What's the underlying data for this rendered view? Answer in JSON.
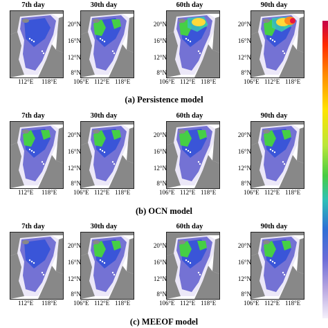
{
  "rows": [
    {
      "caption": "(a) Persistence model",
      "panels": [
        {
          "day": "7th day",
          "lat": [],
          "lon": [
            "112°E",
            "118°E"
          ]
        },
        {
          "day": "30th  day",
          "lat": [
            "20°N",
            "16°N",
            "12°N",
            "8°N"
          ],
          "lon": [
            "106°E",
            "112°E",
            "118°E"
          ]
        },
        {
          "day": "60th day",
          "lat": [
            "20°N",
            "16°N",
            "12°N",
            "8°N"
          ],
          "lon": [
            "106°E",
            "112°E",
            "118°E"
          ]
        },
        {
          "day": "90th day",
          "lat": [
            "20°N",
            "16°N",
            "12°N",
            "8°N"
          ],
          "lon": [
            "106°E",
            "112°E",
            "118°E"
          ]
        }
      ]
    },
    {
      "caption": "(b) OCN model",
      "panels": [
        {
          "day": "7th  day",
          "lat": [],
          "lon": [
            "112°E",
            "118°E"
          ]
        },
        {
          "day": "30th  day",
          "lat": [
            "20°N",
            "16°N",
            "12°N",
            "8°N"
          ],
          "lon": [
            "106°E",
            "112°E",
            "118°E"
          ]
        },
        {
          "day": "60th  day",
          "lat": [
            "20°N",
            "16°N",
            "12°N",
            "8°N"
          ],
          "lon": [
            "106°E",
            "112°E",
            "118°E"
          ]
        },
        {
          "day": "90th  day",
          "lat": [
            "20°N",
            "16°N",
            "12°N",
            "8°N"
          ],
          "lon": [
            "106°E",
            "112°E",
            "118°E"
          ]
        }
      ]
    },
    {
      "caption": "(c) MEEOF model",
      "panels": [
        {
          "day": "7th  day",
          "lat": [],
          "lon": [
            "112°E",
            "118°E"
          ]
        },
        {
          "day": "30th  day",
          "lat": [
            "20°N",
            "16°N",
            "12°N",
            "8°N"
          ],
          "lon": [
            "106°E",
            "112°E",
            "118°E"
          ]
        },
        {
          "day": "60th  day",
          "lat": [
            "20°N",
            "16°N",
            "12°N",
            "8°N"
          ],
          "lon": [
            "106°E",
            "112°E",
            "118°E"
          ]
        },
        {
          "day": "90th  day",
          "lat": [
            "20°N",
            "16°N",
            "12°N",
            "8°N"
          ],
          "lon": [
            "106°E",
            "112°E",
            "118°E"
          ]
        }
      ]
    }
  ],
  "colors": {
    "land": "#888888",
    "deep": "#7472d4",
    "light": "#ece8f8",
    "blue": "#3a55d8",
    "green": "#46cf45",
    "cyan": "#38c6b8",
    "yellow": "#ffd93a",
    "orange": "#ff8a1e",
    "red": "#e8153e"
  }
}
